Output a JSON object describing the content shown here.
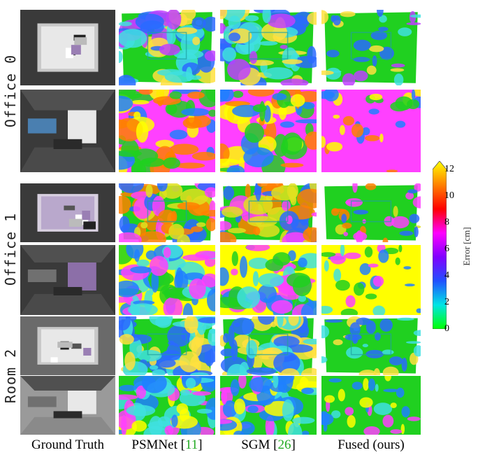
{
  "scenes": [
    {
      "label": "Office 0",
      "rows": [
        0,
        1
      ]
    },
    {
      "label": "Office 1",
      "rows": [
        2,
        3
      ]
    },
    {
      "label": "Room 2",
      "rows": [
        4,
        5
      ]
    }
  ],
  "columns": [
    {
      "label": "Ground Truth",
      "cite": ""
    },
    {
      "label": "PSMNet [",
      "cite": "11",
      "suffix": "]"
    },
    {
      "label": "SGM [",
      "cite": "26",
      "suffix": "]"
    },
    {
      "label": "Fused (ours)",
      "cite": ""
    }
  ],
  "colorbar": {
    "title": "Error [cm]",
    "ticks": [
      "0",
      "2",
      "4",
      "6",
      "8",
      "10",
      "12"
    ],
    "range": [
      0,
      12
    ],
    "colors": [
      "#00ff00",
      "#00e5e5",
      "#2050ff",
      "#8000ff",
      "#ff00ff",
      "#ff0000",
      "#ff8000",
      "#ffff00"
    ]
  },
  "error_rows": [
    {
      "scene": "Office 0",
      "view": "top-down",
      "dominant": [
        "#20d020",
        "#40e0e0",
        "#2a6aff",
        "#c040ff",
        "#ffe040"
      ]
    },
    {
      "scene": "Office 0",
      "view": "perspective",
      "dominant": [
        "#ff40ff",
        "#ffff00",
        "#2080ff",
        "#20d020",
        "#ff8000"
      ]
    },
    {
      "scene": "Office 1",
      "view": "top-down",
      "dominant": [
        "#20d020",
        "#e0e020",
        "#2a6aff",
        "#ff40ff",
        "#ff8000"
      ]
    },
    {
      "scene": "Office 1",
      "view": "perspective",
      "dominant": [
        "#ffff00",
        "#ff40ff",
        "#2080ff",
        "#20d020",
        "#40e0e0"
      ]
    },
    {
      "scene": "Room 2",
      "view": "top-down",
      "dominant": [
        "#20d020",
        "#40e0e0",
        "#2a6aff",
        "#ffe040"
      ]
    },
    {
      "scene": "Room 2",
      "view": "perspective",
      "dominant": [
        "#20d020",
        "#ff40ff",
        "#2080ff",
        "#ffff00",
        "#40e0e0"
      ]
    }
  ]
}
